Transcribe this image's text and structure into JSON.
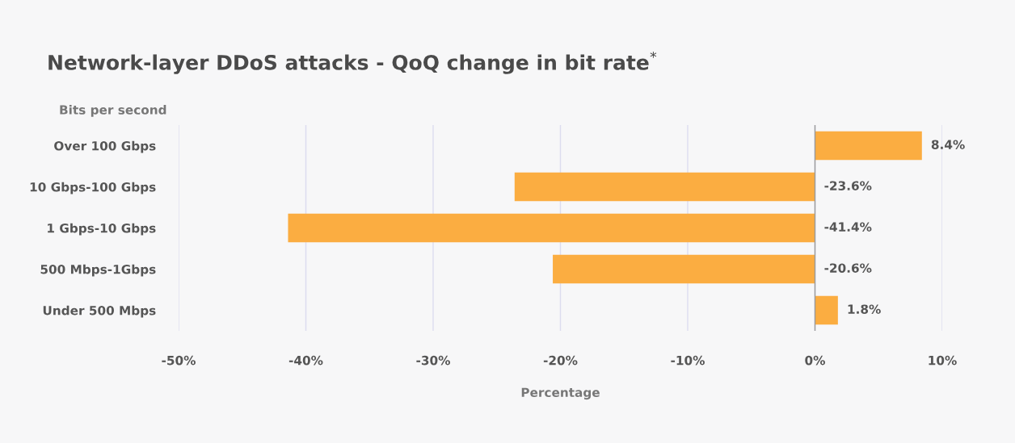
{
  "chart_data": {
    "type": "bar",
    "orientation": "horizontal",
    "title": "Network-layer DDoS attacks - QoQ change in bit rate$^{*}$",
    "ylabel": "Bits per second",
    "xlabel": "Percentage",
    "categories": [
      "Over 100 Gbps",
      "10 Gbps-100 Gbps",
      "1 Gbps-10 Gbps",
      "500 Mbps-1Gbps",
      "Under 500 Mbps"
    ],
    "values": [
      8.4,
      -23.6,
      -41.4,
      -20.6,
      1.8
    ],
    "value_labels": [
      "8.4%",
      "-23.6%",
      "-41.4%",
      "-20.6%",
      "1.8%"
    ],
    "color": "#fbad41",
    "xlim": [
      -50,
      10
    ],
    "xticks": [
      {
        "value": -50,
        "label": "-50%"
      },
      {
        "value": -40,
        "label": "-40%"
      },
      {
        "value": -30,
        "label": "-30%"
      },
      {
        "value": -20,
        "label": "-20%"
      },
      {
        "value": -10,
        "label": "-10%"
      },
      {
        "value": 0,
        "label": "0%"
      },
      {
        "value": 10,
        "label": "10%"
      }
    ],
    "grid": "x",
    "legend": false
  }
}
